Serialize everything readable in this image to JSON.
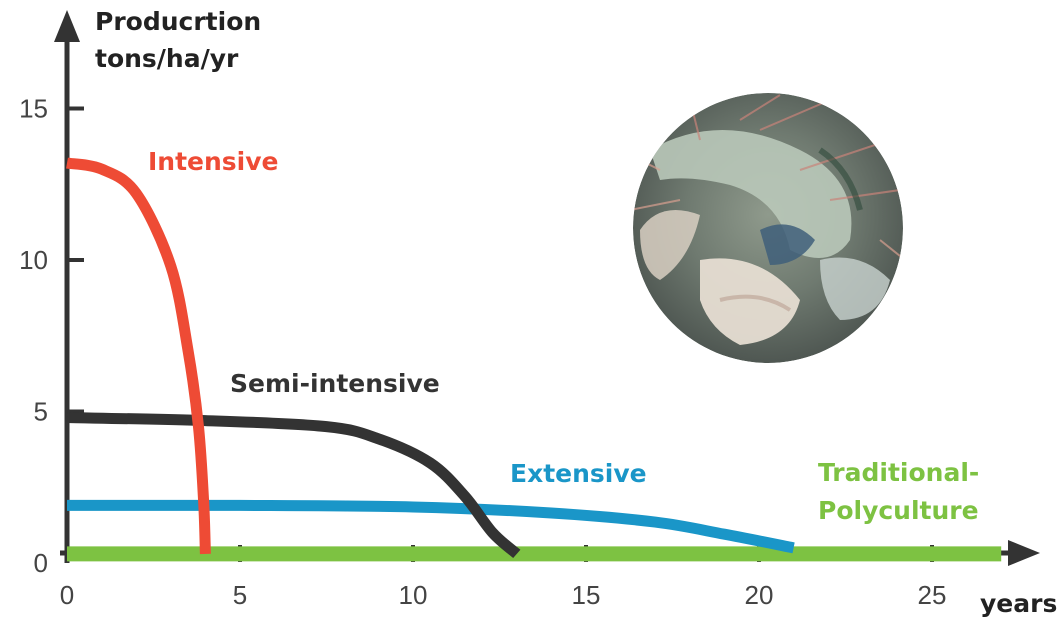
{
  "chart_data": {
    "type": "line",
    "ylabel_line1": "Producrtion",
    "ylabel_line2": "tons/ha/yr",
    "xlabel": "years",
    "x_ticks": [
      0,
      5,
      10,
      15,
      20,
      25
    ],
    "y_ticks": [
      0,
      5,
      10,
      15
    ],
    "xlim": [
      0,
      27
    ],
    "ylim": [
      0,
      17
    ],
    "series": [
      {
        "name": "Intensive",
        "color": "#ee4b35",
        "points": [
          [
            0,
            13.2
          ],
          [
            1,
            13.0
          ],
          [
            2,
            12.2
          ],
          [
            3,
            9.8
          ],
          [
            3.5,
            7.0
          ],
          [
            3.8,
            4.5
          ],
          [
            3.95,
            2.0
          ],
          [
            4.0,
            0.3
          ]
        ]
      },
      {
        "name": "Semi-intensive",
        "color": "#333333",
        "points": [
          [
            0,
            4.8
          ],
          [
            4,
            4.7
          ],
          [
            7.5,
            4.5
          ],
          [
            9,
            4.1
          ],
          [
            10.5,
            3.3
          ],
          [
            11.5,
            2.2
          ],
          [
            12.3,
            1.0
          ],
          [
            13,
            0.3
          ]
        ]
      },
      {
        "name": "Extensive",
        "color": "#1a96c8",
        "points": [
          [
            0,
            1.9
          ],
          [
            5,
            1.9
          ],
          [
            10,
            1.85
          ],
          [
            14,
            1.65
          ],
          [
            17,
            1.35
          ],
          [
            19,
            0.95
          ],
          [
            21,
            0.5
          ]
        ]
      },
      {
        "name_line1": "Traditional-",
        "name_line2": "Polyculture",
        "color": "#7dc242",
        "points": [
          [
            0,
            0.3
          ],
          [
            27,
            0.3
          ]
        ]
      }
    ]
  },
  "photo": {
    "subject": "shrimp-photo"
  }
}
